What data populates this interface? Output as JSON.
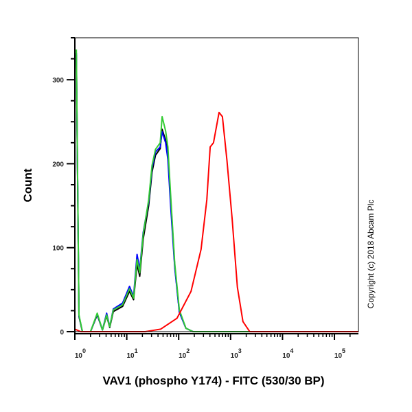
{
  "chart_data": {
    "type": "line",
    "xlabel": "VAV1 (phospho Y174) - FITC (530/30 BP)",
    "ylabel": "Count",
    "x_scale": "log",
    "xlim": [
      1,
      290000
    ],
    "ylim": [
      0,
      350
    ],
    "x_ticks": [
      {
        "value": 1,
        "base": "10",
        "exp": "0"
      },
      {
        "value": 10,
        "base": "10",
        "exp": "1"
      },
      {
        "value": 100,
        "base": "10",
        "exp": "2"
      },
      {
        "value": 1000,
        "base": "10",
        "exp": "3"
      },
      {
        "value": 10000,
        "base": "10",
        "exp": "4"
      },
      {
        "value": 100000,
        "base": "10",
        "exp": "5"
      }
    ],
    "y_ticks": [
      "0",
      "100",
      "200",
      "300"
    ],
    "grid": false,
    "legend": "none",
    "annotation": "Copyright (c) 2018 Abcam Plc",
    "series": [
      {
        "color": "#000000",
        "x": [
          1.07,
          1.2,
          1.4,
          2.0,
          2.7,
          3.4,
          4.1,
          4.7,
          5.5,
          8.3,
          11.3,
          13.5,
          15.8,
          17.8,
          20.7,
          26.4,
          30.7,
          35.7,
          44,
          48,
          56,
          62,
          70,
          84,
          103,
          138,
          190,
          290000
        ],
        "y": [
          330,
          18,
          0,
          0,
          20,
          2,
          19,
          5,
          24,
          30,
          48,
          38,
          80,
          66,
          110,
          150,
          190,
          210,
          218,
          241,
          228,
          212,
          158,
          78,
          24,
          4,
          0,
          0
        ]
      },
      {
        "color": "#0000ff",
        "x": [
          1.07,
          1.2,
          1.4,
          2.0,
          2.7,
          3.4,
          4.1,
          4.7,
          5.5,
          8.3,
          11.3,
          13.5,
          15.8,
          17.8,
          20.7,
          26.4,
          30.7,
          35.7,
          44,
          48,
          56,
          62,
          70,
          84,
          103,
          138,
          190,
          290000
        ],
        "y": [
          332,
          19,
          0,
          0,
          21,
          2,
          22,
          6,
          27,
          34,
          54,
          42,
          92,
          74,
          118,
          155,
          195,
          214,
          220,
          238,
          225,
          205,
          150,
          76,
          23,
          4,
          0,
          0
        ]
      },
      {
        "color": "#33cc33",
        "x": [
          1.07,
          1.2,
          1.4,
          2.0,
          2.7,
          3.4,
          4.1,
          4.7,
          5.5,
          8.3,
          11.3,
          13.5,
          15.8,
          17.8,
          20.7,
          26.4,
          30.7,
          35.7,
          44,
          48,
          56,
          62,
          70,
          84,
          103,
          138,
          190,
          290000
        ],
        "y": [
          336,
          20,
          0,
          0,
          22,
          2,
          20,
          6,
          26,
          32,
          51,
          40,
          86,
          70,
          116,
          157,
          198,
          217,
          225,
          256,
          239,
          220,
          163,
          81,
          26,
          4,
          0,
          0
        ]
      },
      {
        "color": "#ff0000",
        "x": [
          1.0,
          1.3,
          22.7,
          45,
          93,
          173,
          270,
          348,
          405,
          468,
          600,
          695,
          850,
          1070,
          1350,
          1730,
          2340,
          290000
        ],
        "y": [
          3,
          0,
          0,
          3,
          16,
          48,
          98,
          157,
          220,
          225,
          261,
          256,
          204,
          135,
          53,
          12,
          0,
          0
        ]
      }
    ]
  }
}
